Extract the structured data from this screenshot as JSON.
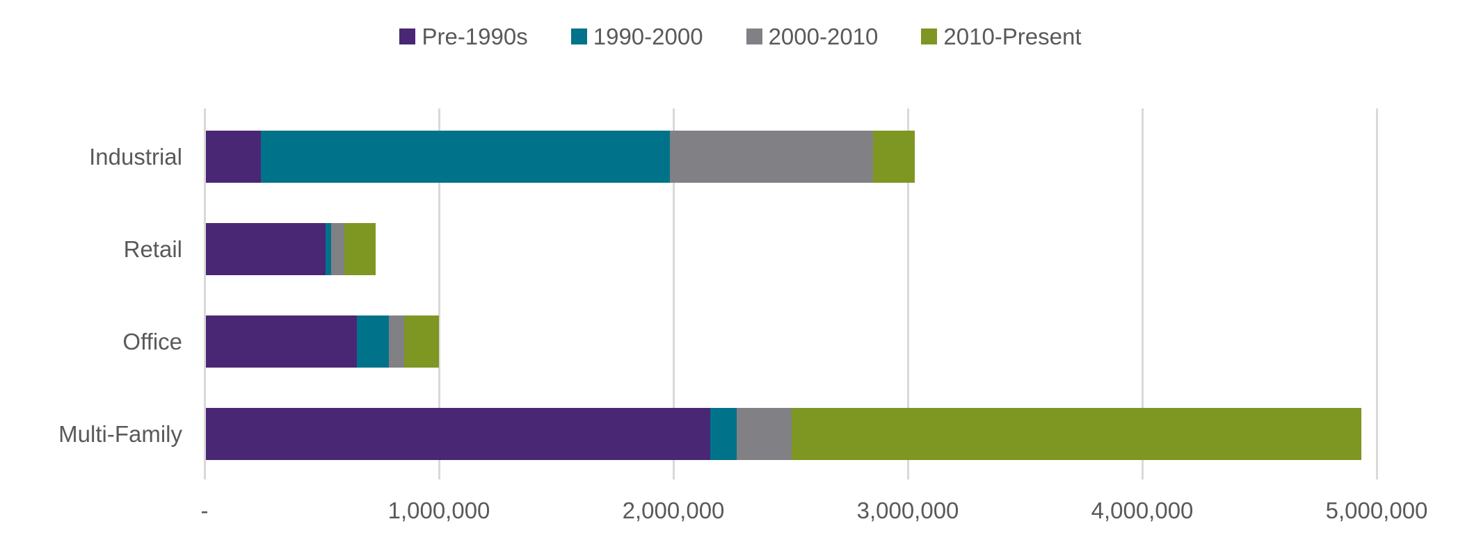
{
  "legend": {
    "items": [
      {
        "label": "Pre-1990s",
        "color": "#4A2774"
      },
      {
        "label": "1990-2000",
        "color": "#00738A"
      },
      {
        "label": "2000-2010",
        "color": "#818185"
      },
      {
        "label": "2010-Present",
        "color": "#7E9622"
      }
    ]
  },
  "chart_data": {
    "type": "bar",
    "orientation": "horizontal",
    "stacked": true,
    "title": "",
    "xlabel": "",
    "ylabel": "",
    "categories": [
      "Industrial",
      "Retail",
      "Office",
      "Multi-Family"
    ],
    "series": [
      {
        "name": "Pre-1990s",
        "color": "#4A2774",
        "values": [
          235000,
          510000,
          645000,
          2150000
        ]
      },
      {
        "name": "1990-2000",
        "color": "#00738A",
        "values": [
          1745000,
          25000,
          135000,
          115000
        ]
      },
      {
        "name": "2000-2010",
        "color": "#818185",
        "values": [
          865000,
          55000,
          65000,
          235000
        ]
      },
      {
        "name": "2010-Present",
        "color": "#7E9622",
        "values": [
          180000,
          135000,
          150000,
          2430000
        ]
      }
    ],
    "totals_by_category": [
      3025000,
      725000,
      995000,
      4930000
    ],
    "x_axis": {
      "min": 0,
      "max": 5000000,
      "tick_values": [
        0,
        1000000,
        2000000,
        3000000,
        4000000,
        5000000
      ],
      "tick_labels": [
        "-",
        "1,000,000",
        "2,000,000",
        "3,000,000",
        "4,000,000",
        "5,000,000"
      ]
    },
    "grid": "vertical-only",
    "legend_position": "top-center",
    "gridline_color": "#d9d9d9",
    "text_color": "#595959",
    "background_color": "#ffffff"
  }
}
